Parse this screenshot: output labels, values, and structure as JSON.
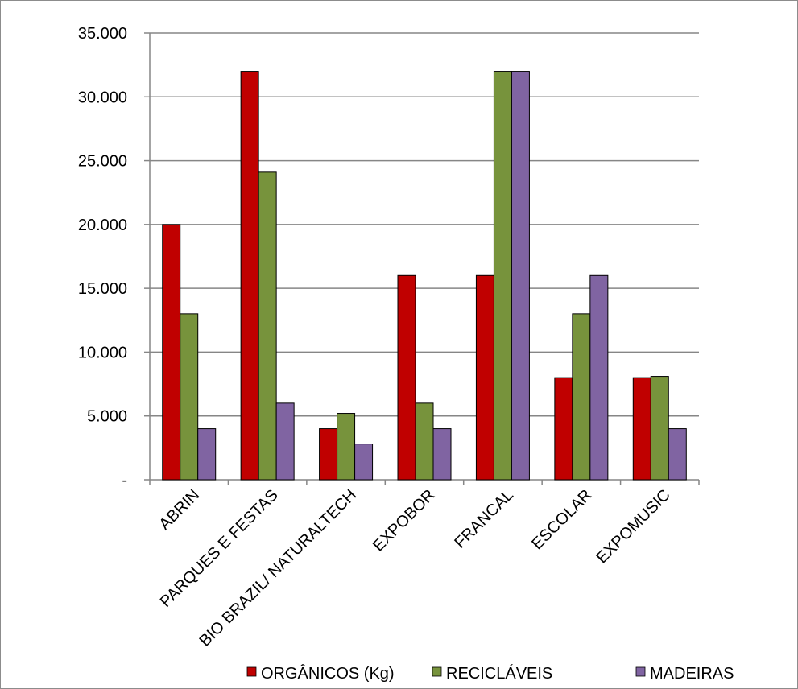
{
  "chart_data": {
    "type": "bar",
    "categories": [
      "ABRIN",
      "PARQUES E FESTAS",
      "BIO BRAZIL/ NATURALTECH",
      "EXPOBOR",
      "FRANCAL",
      "ESCOLAR",
      "EXPOMUSIC"
    ],
    "series": [
      {
        "name": "ORGÂNICOS (Kg)",
        "color": "#c00000",
        "values": [
          20000,
          32000,
          4000,
          16000,
          16000,
          8000,
          8000
        ]
      },
      {
        "name": "RECICLÁVEIS",
        "color": "#77933c",
        "values": [
          13000,
          24100,
          5200,
          6000,
          32000,
          13000,
          8100
        ]
      },
      {
        "name": "MADEIRAS",
        "color": "#8064a2",
        "values": [
          4000,
          6000,
          2800,
          4000,
          32000,
          16000,
          4000
        ]
      }
    ],
    "ylim": [
      0,
      35000
    ],
    "yticks": [
      0,
      5000,
      10000,
      15000,
      20000,
      25000,
      30000,
      35000
    ],
    "ytick_labels": [
      "-",
      "5.000",
      "10.000",
      "15.000",
      "20.000",
      "25.000",
      "30.000",
      "35.000"
    ],
    "grid": true,
    "legend_position": "bottom",
    "title": "",
    "xlabel": "",
    "ylabel": ""
  }
}
